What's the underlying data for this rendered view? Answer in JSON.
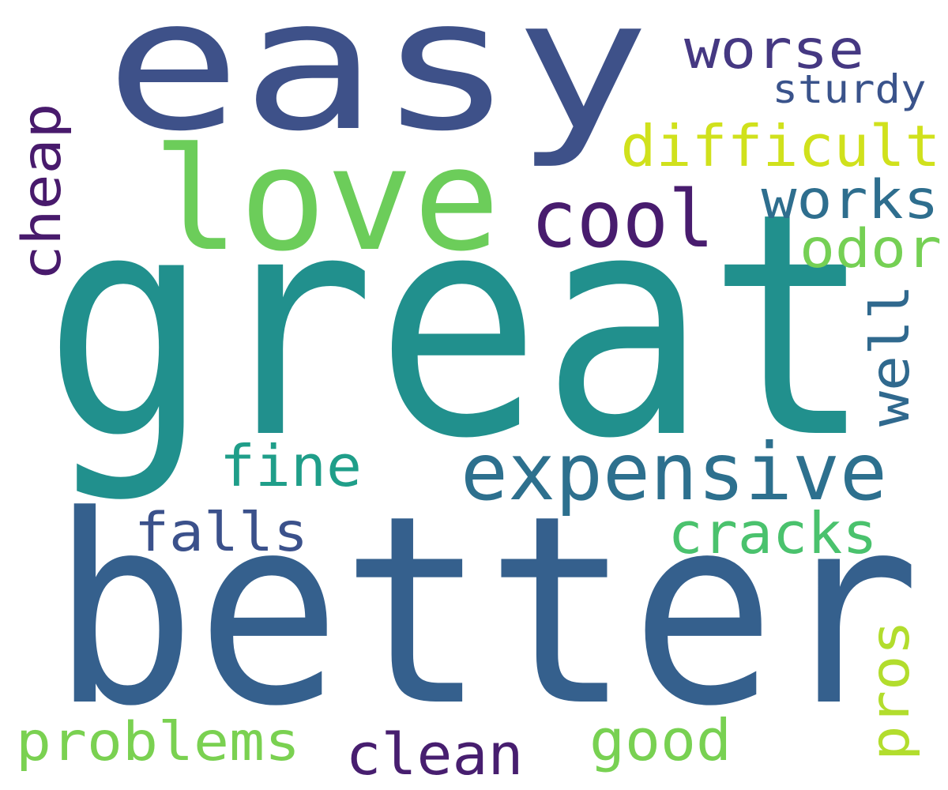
{
  "words": [
    {
      "text": "easy",
      "color": "#3e5189"
    },
    {
      "text": "great",
      "color": "#21908d"
    },
    {
      "text": "better",
      "color": "#35608d"
    },
    {
      "text": "love",
      "color": "#6ccd5a"
    },
    {
      "text": "cool",
      "color": "#481c6e"
    },
    {
      "text": "worse",
      "color": "#453882"
    },
    {
      "text": "sturdy",
      "color": "#3a538b"
    },
    {
      "text": "difficult",
      "color": "#d0e11c"
    },
    {
      "text": "works",
      "color": "#2e6e8e"
    },
    {
      "text": "odor",
      "color": "#75d054"
    },
    {
      "text": "cheap",
      "color": "#481a6c"
    },
    {
      "text": "well",
      "color": "#30698e"
    },
    {
      "text": "expensive",
      "color": "#2d708e"
    },
    {
      "text": "fine",
      "color": "#1f9e89"
    },
    {
      "text": "falls",
      "color": "#3b518b"
    },
    {
      "text": "cracks",
      "color": "#4ac26d"
    },
    {
      "text": "pros",
      "color": "#b2dd2d"
    },
    {
      "text": "problems",
      "color": "#7ad151"
    },
    {
      "text": "clean",
      "color": "#471e6f"
    },
    {
      "text": "good",
      "color": "#78d152"
    }
  ]
}
